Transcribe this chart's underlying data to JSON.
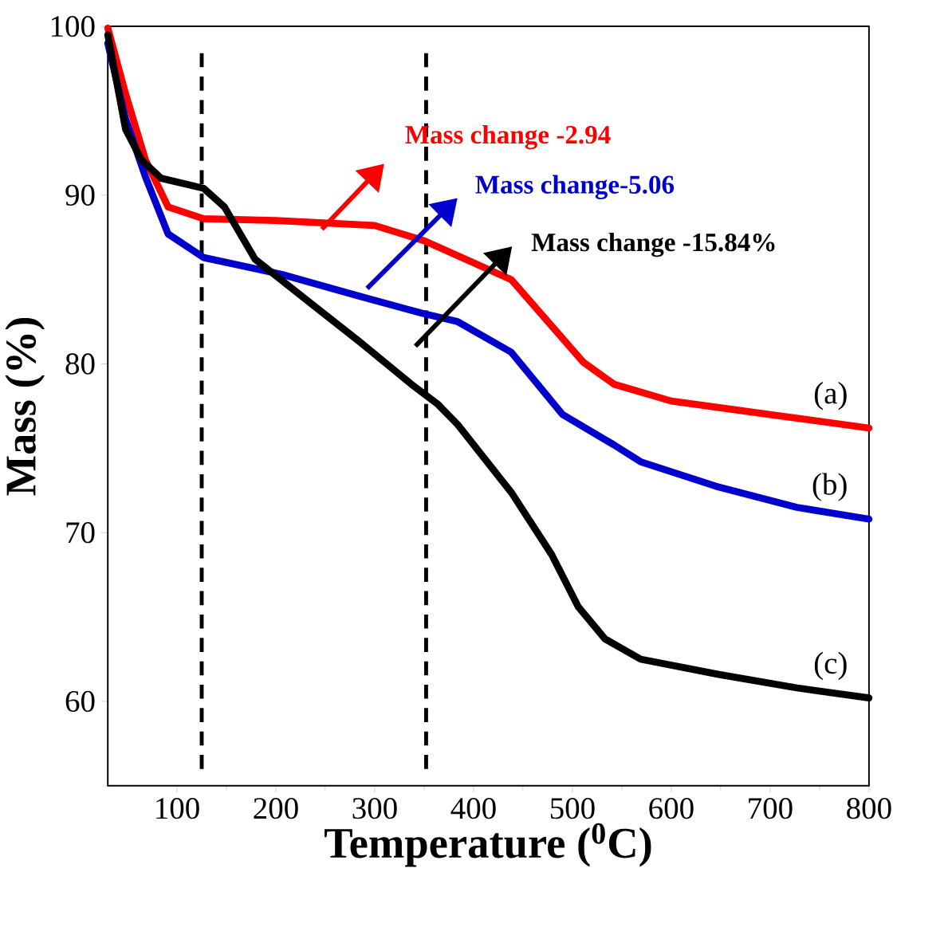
{
  "chart_data": {
    "type": "line",
    "xlabel": "Temperature ($^{0}$C)",
    "ylabel": "Mass (%)",
    "xlim": [
      30,
      800
    ],
    "ylim": [
      55,
      100
    ],
    "xticks": [
      100,
      200,
      300,
      400,
      500,
      600,
      700,
      800
    ],
    "yticks": [
      60,
      70,
      80,
      90,
      100
    ],
    "series": [
      {
        "name": "(a)",
        "color": "#ff0000",
        "x": [
          30,
          48,
          68,
          91,
          127,
          200,
          300,
          350,
          438,
          511,
          542,
          600,
          700,
          800
        ],
        "values": [
          99.9,
          96,
          92.1,
          89.3,
          88.6,
          88.5,
          88.2,
          87.3,
          85,
          80.1,
          78.8,
          77.8,
          77,
          76.2
        ]
      },
      {
        "name": "(b)",
        "color": "#0000cc",
        "x": [
          30,
          48,
          68,
          91,
          127,
          206,
          285,
          348,
          384,
          438,
          490,
          542,
          569,
          648,
          727,
          800
        ],
        "values": [
          99,
          94.5,
          91.1,
          87.7,
          86.3,
          85.3,
          84,
          83,
          82.5,
          80.7,
          77,
          75.2,
          74.2,
          72.7,
          71.5,
          70.8
        ]
      },
      {
        "name": "(c)",
        "color": "#000000",
        "x": [
          30,
          48,
          64,
          84,
          127,
          148,
          179,
          233,
          285,
          337,
          364,
          384,
          438,
          479,
          506,
          533,
          569,
          648,
          727,
          800
        ],
        "values": [
          99.5,
          93.9,
          92.1,
          91,
          90.4,
          89.3,
          86.2,
          83.7,
          81.3,
          78.8,
          77.6,
          76.4,
          72.4,
          68.7,
          65.6,
          63.7,
          62.5,
          61.6,
          60.8,
          60.2
        ]
      }
    ],
    "annotations": [
      "Mass change -2.94",
      "Mass change-5.06",
      "Mass change -15.84%"
    ],
    "ref_lines": [
      {
        "axis": "x",
        "value": 125,
        "color": "#000000",
        "line_style": "dashed"
      },
      {
        "axis": "x",
        "value": 352,
        "color": "#000000",
        "line_style": "dashed"
      }
    ],
    "legend": false,
    "grid": false,
    "marker": "none",
    "line_style": "solid"
  }
}
